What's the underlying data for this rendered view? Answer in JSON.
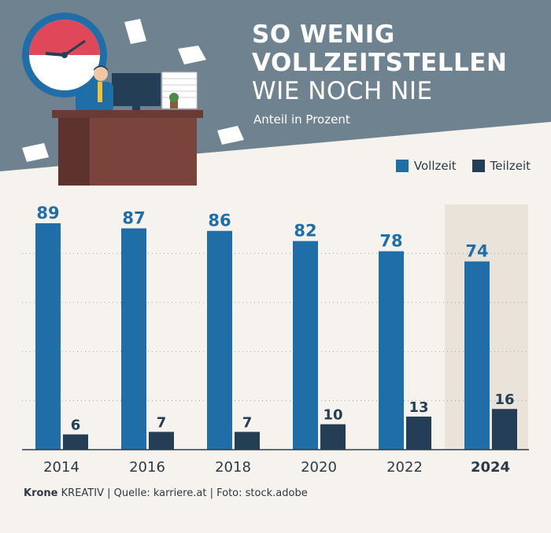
{
  "title": {
    "line1": "SO WENIG",
    "line2": "VOLLZEITSTELLEN",
    "line3": "WIE NOCH NIE"
  },
  "subtitle": "Anteil in Prozent",
  "footer": {
    "brand": "Krone",
    "brand_suffix": "KREATIV",
    "source": "Quelle: karriere.at",
    "photo": "Foto: stock.adobe",
    "separator": "|"
  },
  "colors": {
    "vollzeit": "#1f6ea8",
    "teilzeit": "#243f55",
    "header_bg": "#6f8290",
    "highlight_bg": "#e9e3d9"
  },
  "chart_data": {
    "type": "bar",
    "categories": [
      "2014",
      "2016",
      "2018",
      "2020",
      "2022",
      "2024"
    ],
    "highlight_category": "2024",
    "series": [
      {
        "name": "Vollzeit",
        "values": [
          89,
          87,
          86,
          82,
          78,
          74
        ]
      },
      {
        "name": "Teilzeit",
        "values": [
          6,
          7,
          7,
          10,
          13,
          16
        ]
      }
    ],
    "ylim": [
      0,
      100
    ],
    "grid": "dotted horizontal",
    "legend_position": "top-right",
    "data_labels": true
  }
}
